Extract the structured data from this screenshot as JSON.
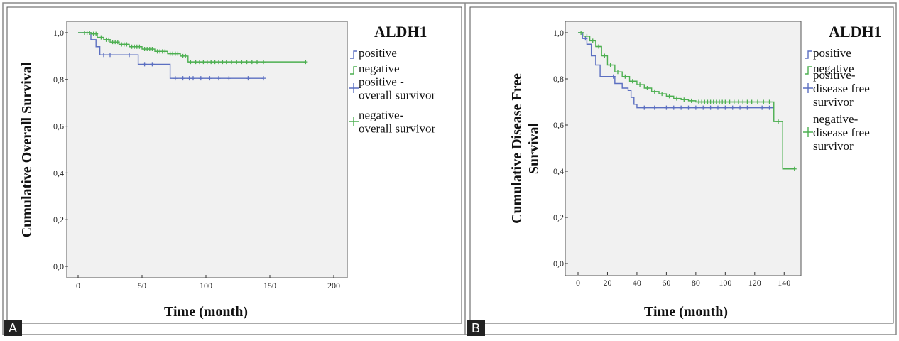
{
  "panels": [
    "A",
    "B"
  ],
  "chart_data": [
    {
      "type": "line",
      "step": true,
      "ylabel": "Cumulative Overall Survival",
      "xlabel": "Time (month)",
      "xlim": [
        0,
        200
      ],
      "ylim": [
        0,
        1.0
      ],
      "xticks": [
        0,
        50,
        100,
        150,
        200
      ],
      "yticks": [
        0,
        0.2,
        0.4,
        0.6,
        0.8,
        1.0
      ],
      "xtick_labels": [
        "0",
        "50",
        "100",
        "150",
        "200"
      ],
      "ytick_labels": [
        "0,0",
        "0,2",
        "0,4",
        "0,6",
        "0,8",
        "1,0"
      ],
      "legend_title": "ALDH1",
      "legend": [
        "positive",
        "negative",
        "positive -\noverall survivor",
        "negative-\noverall survivor"
      ],
      "legend_position": "right",
      "series": [
        {
          "name": "positive",
          "color": "#5b6fc1",
          "x": [
            0,
            10,
            14,
            17,
            47,
            72,
            145
          ],
          "y": [
            1.0,
            0.97,
            0.94,
            0.905,
            0.865,
            0.805,
            0.805
          ],
          "censored_x": [
            20,
            25,
            40,
            52,
            58,
            76,
            82,
            87,
            90,
            96,
            103,
            110,
            118,
            133,
            145
          ],
          "censored_y": [
            0.905,
            0.905,
            0.905,
            0.865,
            0.865,
            0.805,
            0.805,
            0.805,
            0.805,
            0.805,
            0.805,
            0.805,
            0.805,
            0.805,
            0.805
          ]
        },
        {
          "name": "negative",
          "color": "#4caf50",
          "x": [
            0,
            10,
            15,
            20,
            25,
            32,
            40,
            50,
            60,
            70,
            80,
            86,
            90,
            178
          ],
          "y": [
            1.0,
            0.995,
            0.98,
            0.97,
            0.96,
            0.95,
            0.94,
            0.93,
            0.92,
            0.91,
            0.9,
            0.875,
            0.875,
            0.875
          ],
          "censored_x": [
            5,
            7,
            9,
            12,
            14,
            18,
            22,
            24,
            27,
            29,
            31,
            34,
            36,
            38,
            42,
            44,
            46,
            48,
            52,
            54,
            56,
            58,
            62,
            64,
            66,
            68,
            72,
            74,
            76,
            78,
            82,
            84,
            88,
            92,
            95,
            98,
            101,
            104,
            107,
            110,
            113,
            116,
            120,
            124,
            128,
            132,
            136,
            140,
            145,
            178
          ],
          "censored_y": [
            1.0,
            1.0,
            1.0,
            0.995,
            0.995,
            0.98,
            0.97,
            0.97,
            0.96,
            0.96,
            0.96,
            0.95,
            0.95,
            0.95,
            0.94,
            0.94,
            0.94,
            0.94,
            0.93,
            0.93,
            0.93,
            0.93,
            0.92,
            0.92,
            0.92,
            0.92,
            0.91,
            0.91,
            0.91,
            0.91,
            0.9,
            0.9,
            0.875,
            0.875,
            0.875,
            0.875,
            0.875,
            0.875,
            0.875,
            0.875,
            0.875,
            0.875,
            0.875,
            0.875,
            0.875,
            0.875,
            0.875,
            0.875,
            0.875,
            0.875
          ]
        }
      ]
    },
    {
      "type": "line",
      "step": true,
      "ylabel": "Cumulative Disease Free\nSurvival",
      "xlabel": "Time (month)",
      "xlim": [
        0,
        150
      ],
      "ylim": [
        0,
        1.0
      ],
      "xticks": [
        0,
        20,
        40,
        60,
        80,
        100,
        120,
        140
      ],
      "yticks": [
        0,
        0.2,
        0.4,
        0.6,
        0.8,
        1.0
      ],
      "xtick_labels": [
        "0",
        "20",
        "40",
        "60",
        "80",
        "100",
        "120",
        "140"
      ],
      "ytick_labels": [
        "0,0",
        "0,2",
        "0,4",
        "0,6",
        "0,8",
        "1,0"
      ],
      "legend_title": "ALDH1",
      "legend": [
        "positive",
        "negative",
        "positive-\ndisease free\nsurvivor",
        "negative-\ndisease free\nsurvivor"
      ],
      "legend_position": "right",
      "series": [
        {
          "name": "positive",
          "color": "#5b6fc1",
          "x": [
            0,
            3,
            6,
            9,
            12,
            15,
            22,
            25,
            30,
            34,
            36,
            38,
            40,
            133
          ],
          "y": [
            1.0,
            0.975,
            0.95,
            0.9,
            0.86,
            0.81,
            0.81,
            0.78,
            0.76,
            0.75,
            0.72,
            0.69,
            0.675,
            0.675
          ],
          "censored_x": [
            5,
            24,
            45,
            52,
            60,
            65,
            70,
            75,
            80,
            85,
            90,
            95,
            100,
            105,
            110,
            115,
            125,
            130
          ],
          "censored_y": [
            0.975,
            0.81,
            0.675,
            0.675,
            0.675,
            0.675,
            0.675,
            0.675,
            0.675,
            0.675,
            0.675,
            0.675,
            0.675,
            0.675,
            0.675,
            0.675,
            0.675,
            0.675
          ]
        },
        {
          "name": "negative",
          "color": "#4caf50",
          "x": [
            0,
            4,
            8,
            12,
            16,
            20,
            25,
            30,
            35,
            40,
            45,
            50,
            55,
            60,
            65,
            70,
            75,
            80,
            133,
            139,
            147
          ],
          "y": [
            1.0,
            0.985,
            0.965,
            0.94,
            0.9,
            0.86,
            0.83,
            0.81,
            0.79,
            0.775,
            0.76,
            0.745,
            0.735,
            0.725,
            0.715,
            0.71,
            0.705,
            0.7,
            0.615,
            0.41,
            0.41
          ],
          "censored_x": [
            2,
            6,
            10,
            14,
            18,
            22,
            27,
            32,
            37,
            42,
            47,
            52,
            57,
            62,
            67,
            72,
            77,
            82,
            84,
            86,
            88,
            90,
            92,
            94,
            96,
            98,
            100,
            103,
            106,
            109,
            112,
            115,
            118,
            122,
            126,
            130,
            136,
            147
          ],
          "censored_y": [
            1.0,
            0.985,
            0.965,
            0.94,
            0.9,
            0.86,
            0.83,
            0.81,
            0.79,
            0.775,
            0.76,
            0.745,
            0.735,
            0.725,
            0.715,
            0.71,
            0.705,
            0.7,
            0.7,
            0.7,
            0.7,
            0.7,
            0.7,
            0.7,
            0.7,
            0.7,
            0.7,
            0.7,
            0.7,
            0.7,
            0.7,
            0.7,
            0.7,
            0.7,
            0.7,
            0.7,
            0.615,
            0.41
          ]
        }
      ]
    }
  ]
}
